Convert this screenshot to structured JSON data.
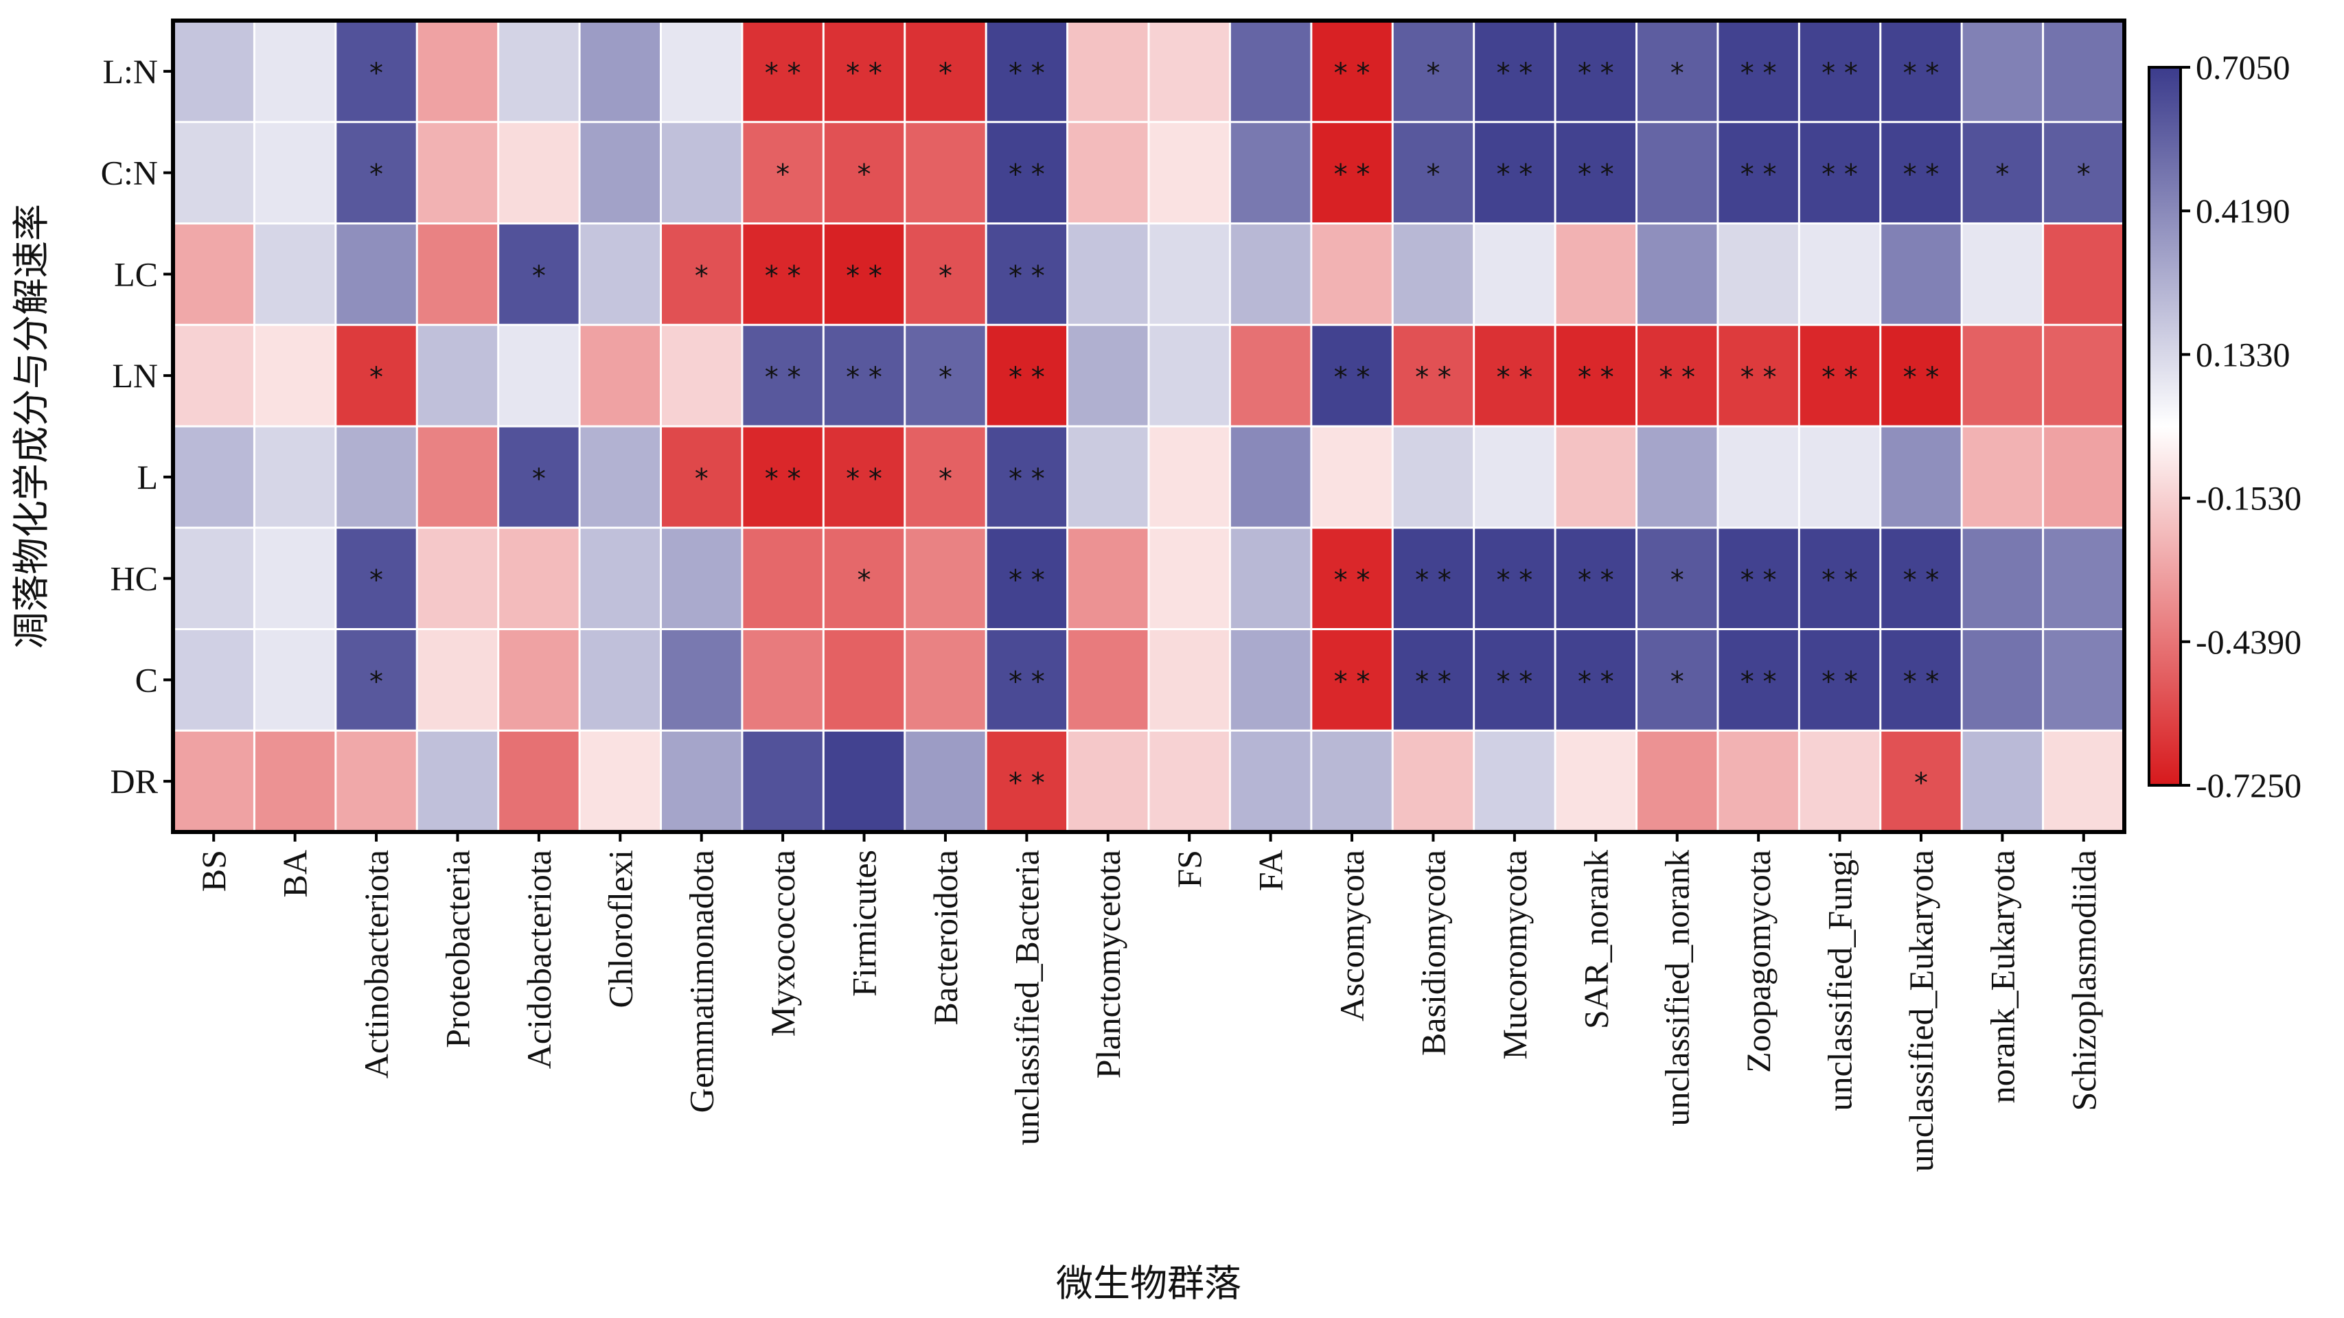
{
  "chart_data": {
    "type": "heatmap",
    "xlabel": "微生物群落",
    "ylabel": "凋落物化学成分与分解速率",
    "rows": [
      "L:N",
      "C:N",
      "LC",
      "LN",
      "L",
      "HC",
      "C",
      "DR"
    ],
    "columns": [
      "BS",
      "BA",
      "Actinobacteriota",
      "Proteobacteria",
      "Acidobacteriota",
      "Chloroflexi",
      "Gemmatimonadota",
      "Myxococcota",
      "Firmicutes",
      "Bacteroidota",
      "unclassified_Bacteria",
      "Planctomycetota",
      "FS",
      "FA",
      "Ascomycota",
      "Basidiomycota",
      "Mucoromycota",
      "SAR_norank",
      "unclassified_norank",
      "Zoopagomycota",
      "unclassified_Fungi",
      "unclassified_Eukaryota",
      "norank_Eukaryota",
      "Schizoplasmodiida"
    ],
    "values": [
      [
        0.2,
        0.08,
        0.62,
        -0.3,
        0.15,
        0.35,
        0.08,
        -0.65,
        -0.65,
        -0.65,
        0.68,
        -0.2,
        -0.15,
        0.55,
        -0.7,
        0.58,
        0.68,
        0.68,
        0.58,
        0.68,
        0.68,
        0.68,
        0.45,
        0.5
      ],
      [
        0.13,
        0.08,
        0.6,
        -0.25,
        -0.12,
        0.33,
        0.22,
        -0.5,
        -0.55,
        -0.5,
        0.68,
        -0.22,
        -0.1,
        0.48,
        -0.7,
        0.6,
        0.68,
        0.68,
        0.55,
        0.68,
        0.68,
        0.68,
        0.62,
        0.58
      ],
      [
        -0.28,
        0.14,
        0.4,
        -0.4,
        0.62,
        0.2,
        -0.55,
        -0.68,
        -0.7,
        -0.55,
        0.65,
        0.2,
        0.12,
        0.25,
        -0.25,
        0.25,
        0.08,
        -0.25,
        0.4,
        0.13,
        0.08,
        0.45,
        0.08,
        -0.55
      ],
      [
        -0.15,
        -0.1,
        -0.62,
        0.22,
        0.08,
        -0.3,
        -0.15,
        0.6,
        0.6,
        0.55,
        -0.7,
        0.28,
        0.14,
        -0.45,
        0.68,
        -0.55,
        -0.65,
        -0.68,
        -0.65,
        -0.62,
        -0.68,
        -0.7,
        -0.5,
        -0.5
      ],
      [
        0.24,
        0.14,
        0.28,
        -0.4,
        0.62,
        0.27,
        -0.58,
        -0.68,
        -0.65,
        -0.5,
        0.65,
        0.18,
        -0.1,
        0.42,
        -0.1,
        0.15,
        0.08,
        -0.2,
        0.32,
        0.08,
        0.08,
        0.4,
        -0.25,
        -0.3
      ],
      [
        0.14,
        0.08,
        0.62,
        -0.18,
        -0.22,
        0.22,
        0.3,
        -0.48,
        -0.48,
        -0.4,
        0.68,
        -0.35,
        -0.1,
        0.25,
        -0.68,
        0.68,
        0.68,
        0.68,
        0.6,
        0.68,
        0.68,
        0.68,
        0.48,
        0.45
      ],
      [
        0.16,
        0.08,
        0.6,
        -0.12,
        -0.3,
        0.22,
        0.48,
        -0.42,
        -0.5,
        -0.4,
        0.65,
        -0.42,
        -0.12,
        0.3,
        -0.68,
        0.68,
        0.68,
        0.68,
        0.58,
        0.68,
        0.68,
        0.68,
        0.5,
        0.45
      ],
      [
        -0.3,
        -0.35,
        -0.28,
        0.22,
        -0.45,
        -0.1,
        0.32,
        0.62,
        0.68,
        0.35,
        -0.62,
        -0.18,
        -0.15,
        0.26,
        0.25,
        -0.2,
        0.16,
        -0.1,
        -0.35,
        -0.25,
        -0.15,
        -0.55,
        0.24,
        -0.12
      ]
    ],
    "significance": [
      [
        "",
        "",
        "*",
        "",
        "",
        "",
        "",
        "**",
        "**",
        "*",
        "**",
        "",
        "",
        "",
        "**",
        "*",
        "**",
        "**",
        "*",
        "**",
        "**",
        "**",
        "",
        ""
      ],
      [
        "",
        "",
        "*",
        "",
        "",
        "",
        "",
        "*",
        "*",
        "",
        "**",
        "",
        "",
        "",
        "**",
        "*",
        "**",
        "**",
        "",
        "**",
        "**",
        "**",
        "*",
        "*"
      ],
      [
        "",
        "",
        "",
        "",
        "*",
        "",
        "*",
        "**",
        "**",
        "*",
        "**",
        "",
        "",
        "",
        "",
        "",
        "",
        "",
        "",
        "",
        "",
        "",
        "",
        ""
      ],
      [
        "",
        "",
        "*",
        "",
        "",
        "",
        "",
        "**",
        "**",
        "*",
        "**",
        "",
        "",
        "",
        "**",
        "**",
        "**",
        "**",
        "**",
        "**",
        "**",
        "**",
        "",
        ""
      ],
      [
        "",
        "",
        "",
        "",
        "*",
        "",
        "*",
        "**",
        "**",
        "*",
        "**",
        "",
        "",
        "",
        "",
        "",
        "",
        "",
        "",
        "",
        "",
        "",
        "",
        ""
      ],
      [
        "",
        "",
        "*",
        "",
        "",
        "",
        "",
        "",
        "*",
        "",
        "**",
        "",
        "",
        "",
        "**",
        "**",
        "**",
        "**",
        "*",
        "**",
        "**",
        "**",
        "",
        ""
      ],
      [
        "",
        "",
        "*",
        "",
        "",
        "",
        "",
        "",
        "",
        "",
        "**",
        "",
        "",
        "",
        "**",
        "**",
        "**",
        "**",
        "*",
        "**",
        "**",
        "**",
        "",
        ""
      ],
      [
        "",
        "",
        "",
        "",
        "",
        "",
        "",
        "",
        "",
        "",
        "**",
        "",
        "",
        "",
        "",
        "",
        "",
        "",
        "",
        "",
        "",
        "*",
        "",
        ""
      ]
    ],
    "colorbar": {
      "min": -0.725,
      "max": 0.705,
      "ticks": [
        "0.7050",
        "0.4190",
        "0.1330",
        "-0.1530",
        "-0.4390",
        "-0.7250"
      ],
      "colors": {
        "negative": "#d7191c",
        "neutral": "#ffffff",
        "positive": "#3b3b8c"
      }
    }
  }
}
